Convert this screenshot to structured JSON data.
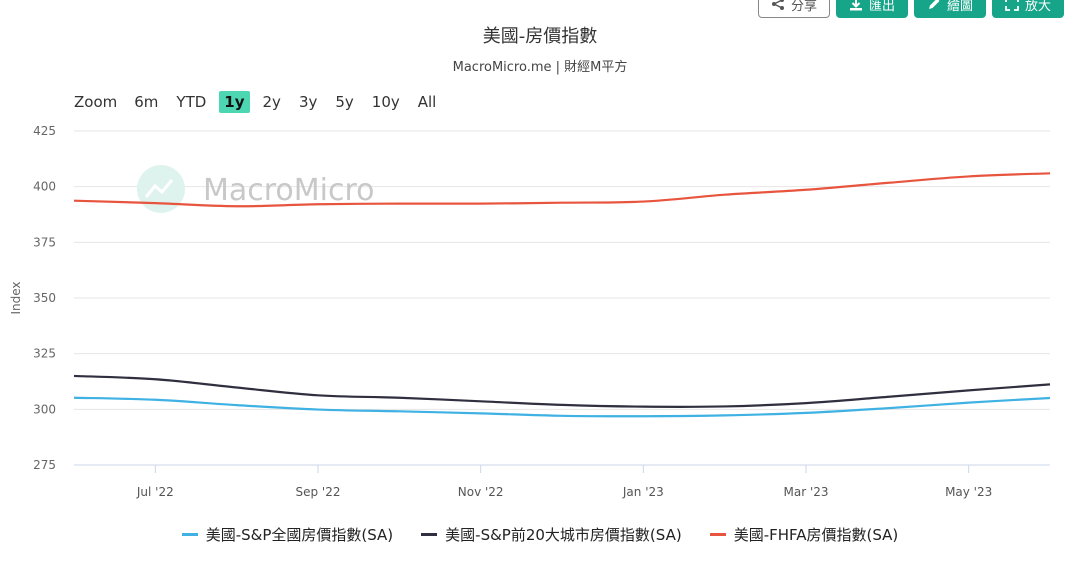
{
  "toolbar": {
    "share_label": "分享",
    "export_label": "匯出",
    "draw_label": "繪圖",
    "expand_label": "放大"
  },
  "zoom": {
    "label": "Zoom",
    "options": [
      "6m",
      "YTD",
      "1y",
      "2y",
      "3y",
      "5y",
      "10y",
      "All"
    ],
    "active": "1y"
  },
  "watermark": "MacroMicro",
  "chart_data": {
    "type": "line",
    "title": "美國-房價指數",
    "subtitle": "MacroMicro.me | 財經M平方",
    "ylabel": "Index",
    "ylim": [
      275,
      425
    ],
    "yticks": [
      275,
      300,
      325,
      350,
      375,
      400,
      425
    ],
    "x": [
      "2022-06",
      "2022-07",
      "2022-08",
      "2022-09",
      "2022-10",
      "2022-11",
      "2022-12",
      "2023-01",
      "2023-02",
      "2023-03",
      "2023-04",
      "2023-05",
      "2023-06"
    ],
    "xtick_labels": [
      "Jul '22",
      "Sep '22",
      "Nov '22",
      "Jan '23",
      "Mar '23",
      "May '23"
    ],
    "xtick_months": [
      "2022-07",
      "2022-09",
      "2022-11",
      "2023-01",
      "2023-03",
      "2023-05"
    ],
    "grid": true,
    "legend_position": "bottom",
    "series": [
      {
        "name": "美國-S&P全國房價指數(SA)",
        "color": "#3fb1e3",
        "values": [
          305.2,
          304.3,
          301.9,
          299.9,
          299.1,
          298.2,
          297.1,
          296.9,
          297.3,
          298.4,
          300.5,
          303.0,
          305.1
        ]
      },
      {
        "name": "美國-S&P前20大城市房價指數(SA)",
        "color": "#2f2f3f",
        "values": [
          315.0,
          313.5,
          309.8,
          306.3,
          305.2,
          303.6,
          302.0,
          301.2,
          301.3,
          302.8,
          305.6,
          308.5,
          311.2
        ]
      },
      {
        "name": "美國-FHFA房價指數(SA)",
        "color": "#e8553e",
        "values": [
          393.7,
          392.6,
          391.2,
          392.1,
          392.4,
          392.4,
          392.8,
          393.3,
          396.4,
          398.6,
          401.7,
          404.6,
          406.0
        ]
      }
    ]
  }
}
